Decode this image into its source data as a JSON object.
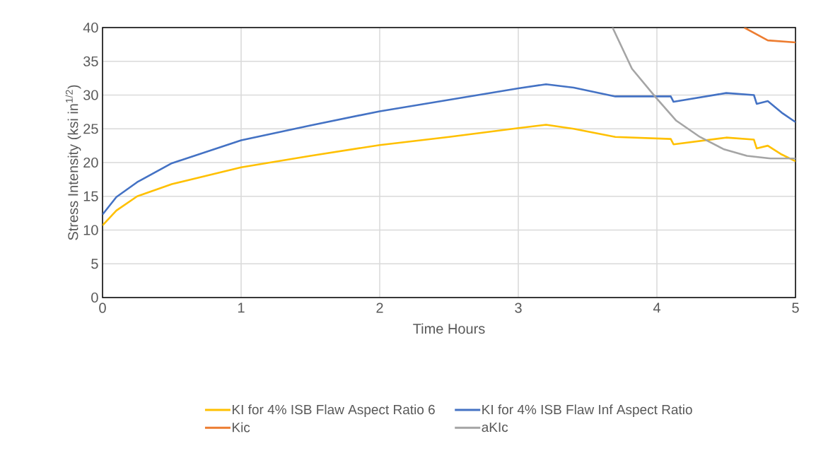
{
  "chart_data": {
    "type": "line",
    "xlabel": "Time Hours",
    "ylabel": "Stress Intensity (ksi in$^{1/2}$)",
    "xlim": [
      0,
      5
    ],
    "ylim": [
      0,
      40
    ],
    "xticks": [
      0,
      1,
      2,
      3,
      4,
      5
    ],
    "yticks": [
      0,
      5,
      10,
      15,
      20,
      25,
      30,
      35,
      40
    ],
    "grid": true,
    "legend": "bottom",
    "marker": "none",
    "line_style": "solid",
    "series": [
      {
        "name": "KI for 4% ISB Flaw Aspect Ratio 6",
        "color": "#ffc000",
        "x": [
          0,
          0.1,
          0.25,
          0.5,
          1,
          1.5,
          2,
          2.5,
          3,
          3.2,
          3.4,
          3.7,
          4.1,
          4.12,
          4.5,
          4.7,
          4.72,
          4.8,
          4.9,
          5
        ],
        "values": [
          10.7,
          12.9,
          15.0,
          16.8,
          19.3,
          21.0,
          22.6,
          23.8,
          25.1,
          25.6,
          25.0,
          23.8,
          23.5,
          22.7,
          23.7,
          23.4,
          22.1,
          22.5,
          21.2,
          20.2
        ]
      },
      {
        "name": "KI for 4% ISB Flaw Inf Aspect Ratio",
        "color": "#4472c4",
        "x": [
          0,
          0.1,
          0.25,
          0.5,
          1,
          1.5,
          2,
          2.5,
          3,
          3.2,
          3.4,
          3.7,
          4.1,
          4.12,
          4.5,
          4.7,
          4.72,
          4.8,
          4.9,
          5
        ],
        "values": [
          12.3,
          14.9,
          17.1,
          19.9,
          23.3,
          25.5,
          27.6,
          29.3,
          31.0,
          31.6,
          31.1,
          29.8,
          29.8,
          29.0,
          30.3,
          30.0,
          28.7,
          29.1,
          27.4,
          26.0
        ]
      },
      {
        "name": "Kic",
        "color": "#ed7d31",
        "x": [
          4.63,
          4.8,
          5
        ],
        "values": [
          40,
          38.1,
          37.8
        ]
      },
      {
        "name": "aKIc",
        "color": "#a5a5a5",
        "x": [
          3.68,
          3.82,
          3.99,
          4.14,
          4.31,
          4.48,
          4.65,
          4.82,
          5
        ],
        "values": [
          40,
          33.9,
          29.7,
          26.2,
          23.8,
          22.0,
          21.0,
          20.6,
          20.6
        ]
      }
    ]
  }
}
